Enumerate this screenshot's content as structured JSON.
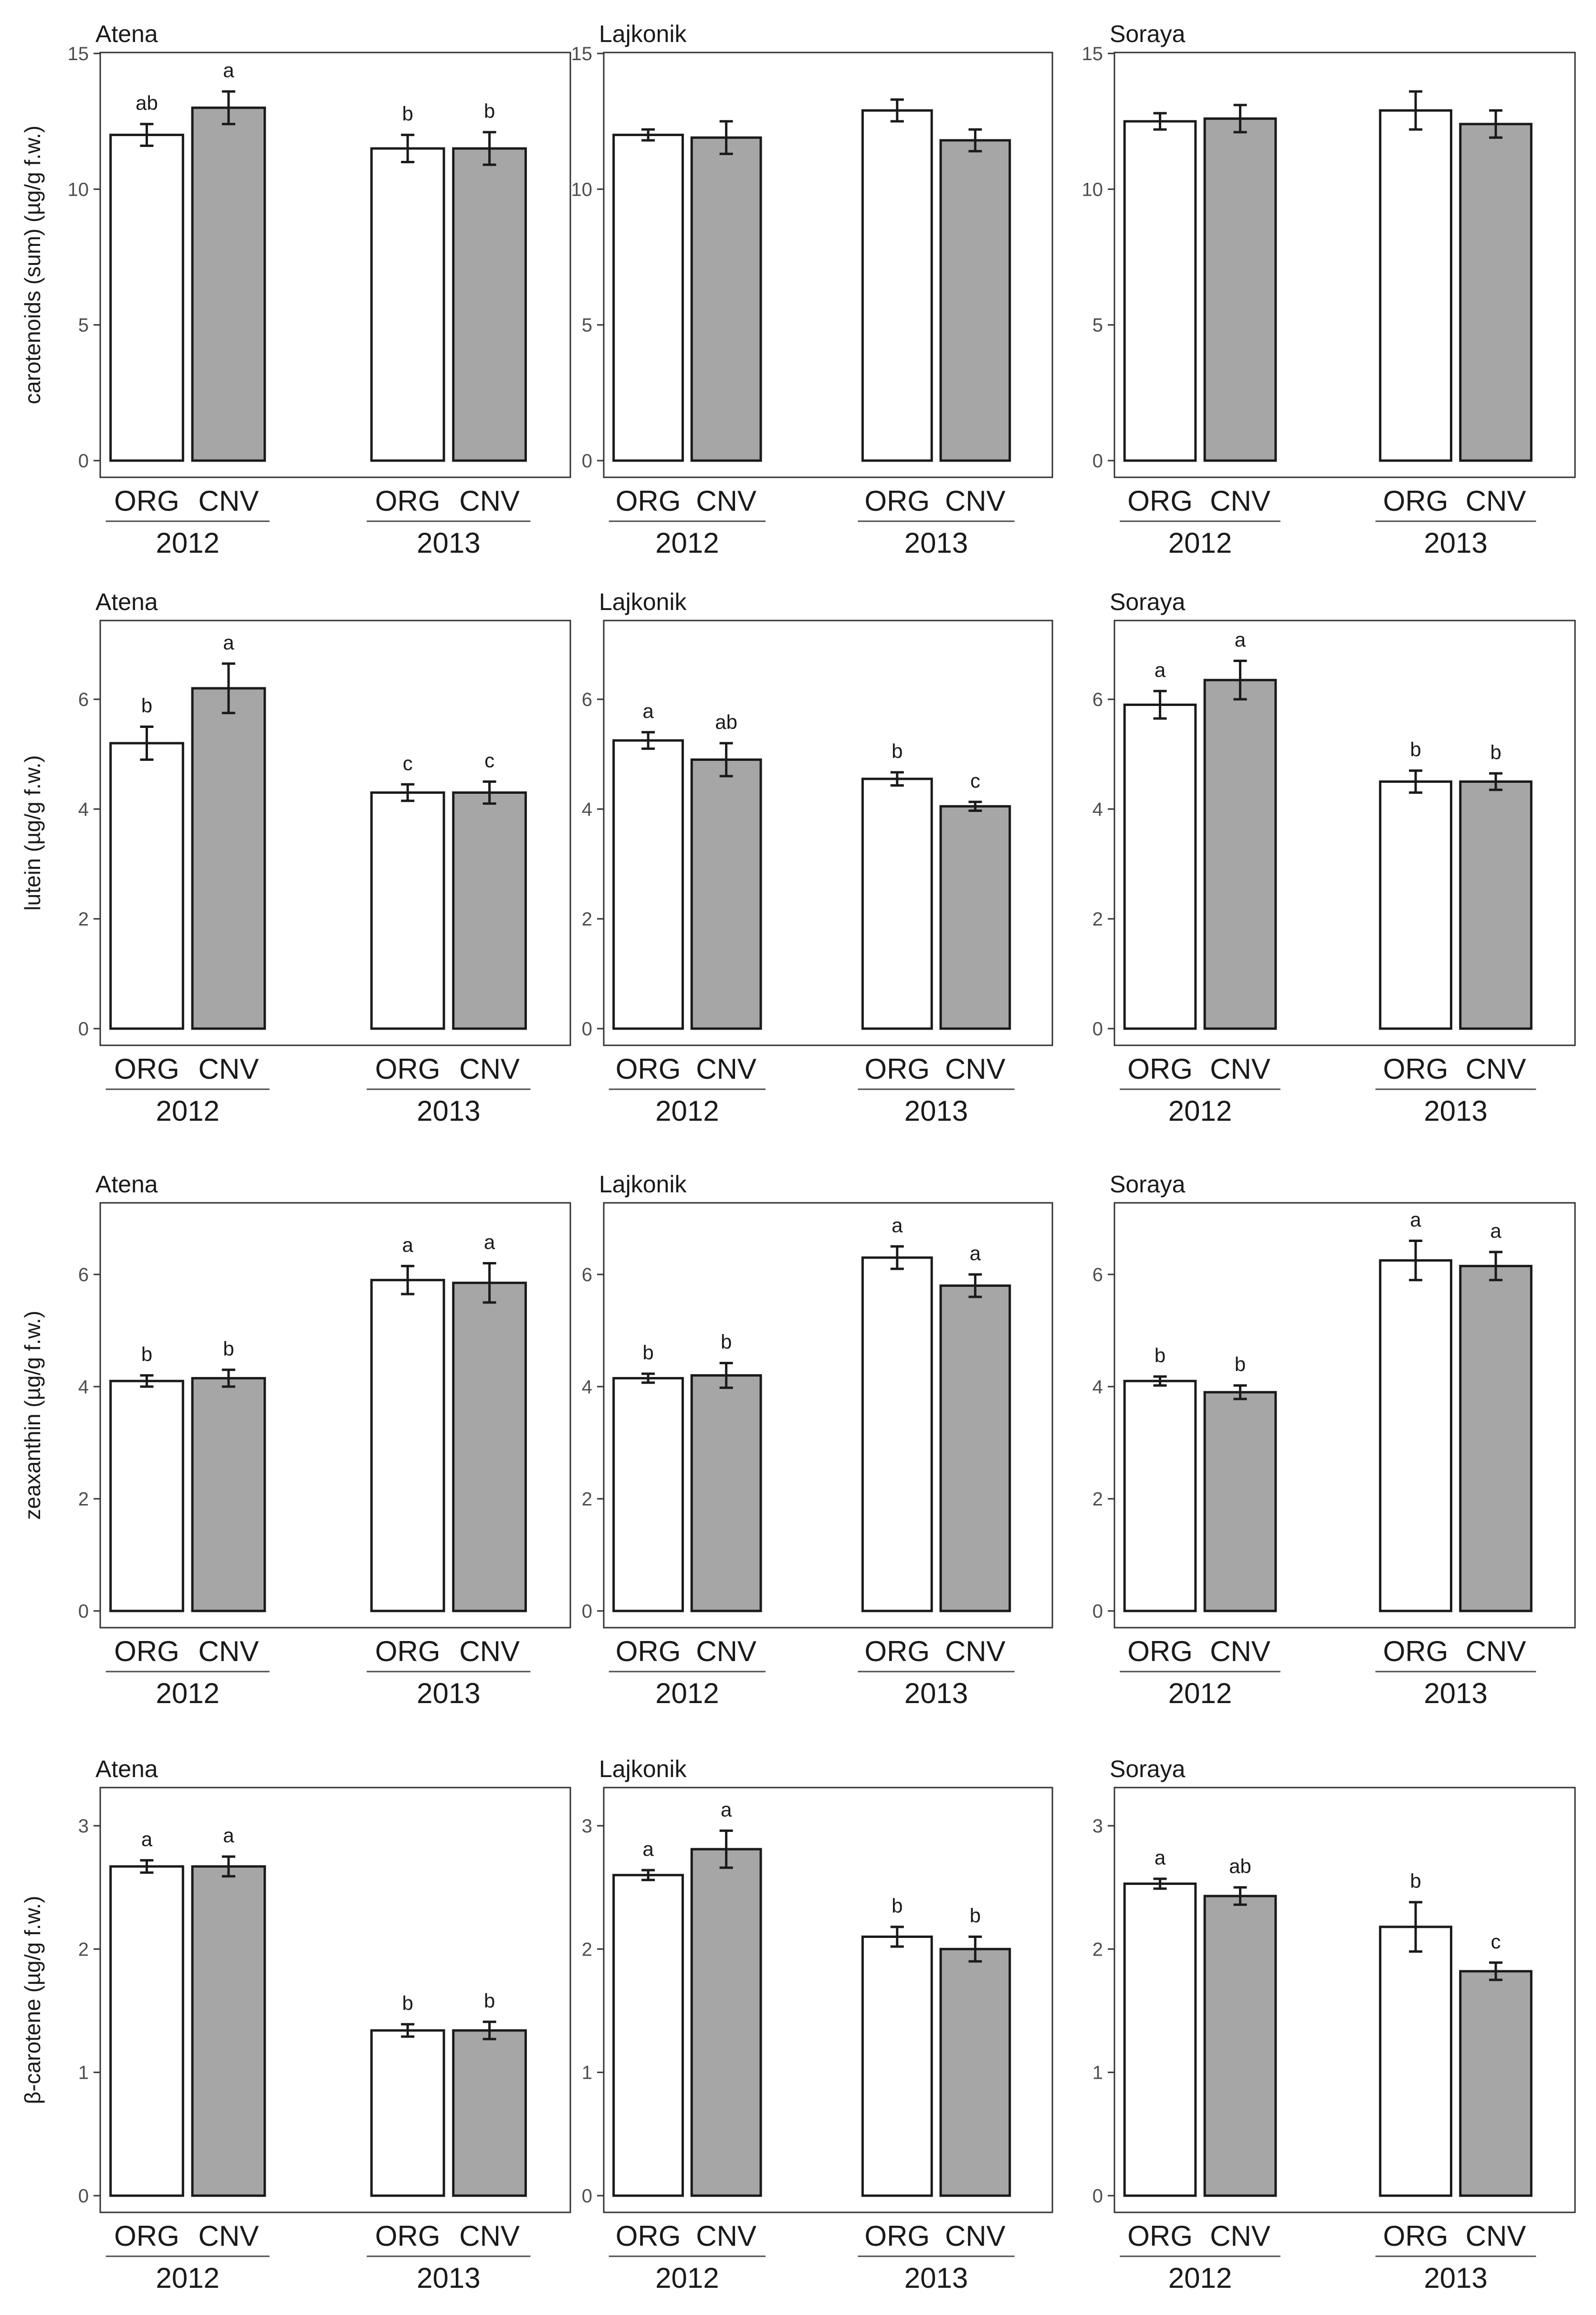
{
  "colors": {
    "ORG": "#ffffff",
    "CNV": "#a6a6a6",
    "border": "#333333",
    "axis": "#333333"
  },
  "chart_data": [
    {
      "type": "bar",
      "row": 0,
      "ylabel": "carotenoids (sum) (µg/g f.w.)",
      "ylim": [
        0,
        15
      ],
      "yticks": [
        0,
        5,
        10,
        15
      ],
      "categories": [
        "ORG",
        "CNV",
        "ORG",
        "CNV"
      ],
      "years": [
        "2012",
        "2013"
      ],
      "panels": [
        {
          "title": "Atena",
          "values": [
            12.0,
            13.0,
            11.5,
            11.5
          ],
          "errors": [
            0.4,
            0.6,
            0.5,
            0.6
          ],
          "labels": [
            "ab",
            "a",
            "b",
            "b"
          ]
        },
        {
          "title": "Lajkonik",
          "values": [
            12.0,
            11.9,
            12.9,
            11.8
          ],
          "errors": [
            0.2,
            0.6,
            0.4,
            0.4
          ],
          "labels": [
            "",
            "",
            "",
            ""
          ]
        },
        {
          "title": "Soraya",
          "values": [
            12.5,
            12.6,
            12.9,
            12.4
          ],
          "errors": [
            0.3,
            0.5,
            0.7,
            0.5
          ],
          "labels": [
            "",
            "",
            "",
            ""
          ]
        }
      ]
    },
    {
      "type": "bar",
      "row": 1,
      "ylabel": "lutein (µg/g f.w.)",
      "ylim": [
        0,
        7.5
      ],
      "yticks": [
        0,
        2,
        4,
        6
      ],
      "categories": [
        "ORG",
        "CNV",
        "ORG",
        "CNV"
      ],
      "years": [
        "2012",
        "2013"
      ],
      "panels": [
        {
          "title": "Atena",
          "values": [
            5.2,
            6.2,
            4.3,
            4.3
          ],
          "errors": [
            0.3,
            0.45,
            0.15,
            0.2
          ],
          "labels": [
            "b",
            "a",
            "c",
            "c"
          ]
        },
        {
          "title": "Lajkonik",
          "values": [
            5.25,
            4.9,
            4.55,
            4.05
          ],
          "errors": [
            0.15,
            0.3,
            0.12,
            0.08
          ],
          "labels": [
            "a",
            "ab",
            "b",
            "c"
          ]
        },
        {
          "title": "Soraya",
          "values": [
            5.9,
            6.35,
            4.5,
            4.5
          ],
          "errors": [
            0.25,
            0.35,
            0.2,
            0.15
          ],
          "labels": [
            "a",
            "a",
            "b",
            "b"
          ]
        }
      ]
    },
    {
      "type": "bar",
      "row": 2,
      "ylabel": "zeaxanthin (µg/g f.w.)",
      "ylim": [
        0,
        7.3
      ],
      "yticks": [
        0,
        2,
        4,
        6
      ],
      "categories": [
        "ORG",
        "CNV",
        "ORG",
        "CNV"
      ],
      "years": [
        "2012",
        "2013"
      ],
      "panels": [
        {
          "title": "Atena",
          "values": [
            4.1,
            4.15,
            5.9,
            5.85
          ],
          "errors": [
            0.1,
            0.15,
            0.25,
            0.35
          ],
          "labels": [
            "b",
            "b",
            "a",
            "a"
          ]
        },
        {
          "title": "Lajkonik",
          "values": [
            4.15,
            4.2,
            6.3,
            5.8
          ],
          "errors": [
            0.08,
            0.22,
            0.2,
            0.2
          ],
          "labels": [
            "b",
            "b",
            "a",
            "a"
          ]
        },
        {
          "title": "Soraya",
          "values": [
            4.1,
            3.9,
            6.25,
            6.15
          ],
          "errors": [
            0.08,
            0.12,
            0.35,
            0.25
          ],
          "labels": [
            "b",
            "b",
            "a",
            "a"
          ]
        }
      ]
    },
    {
      "type": "bar",
      "row": 3,
      "ylabel": "β-carotene (µg/g f.w.)",
      "ylim": [
        0,
        3.3
      ],
      "yticks": [
        0,
        1,
        2,
        3
      ],
      "categories": [
        "ORG",
        "CNV",
        "ORG",
        "CNV"
      ],
      "years": [
        "2012",
        "2013"
      ],
      "panels": [
        {
          "title": "Atena",
          "values": [
            2.67,
            2.67,
            1.34,
            1.34
          ],
          "errors": [
            0.05,
            0.08,
            0.05,
            0.07
          ],
          "labels": [
            "a",
            "a",
            "b",
            "b"
          ]
        },
        {
          "title": "Lajkonik",
          "values": [
            2.6,
            2.81,
            2.1,
            2.0
          ],
          "errors": [
            0.04,
            0.15,
            0.08,
            0.1
          ],
          "labels": [
            "a",
            "a",
            "b",
            "b"
          ]
        },
        {
          "title": "Soraya",
          "values": [
            2.53,
            2.43,
            2.18,
            1.82
          ],
          "errors": [
            0.04,
            0.07,
            0.2,
            0.07
          ],
          "labels": [
            "a",
            "ab",
            "b",
            "c"
          ]
        }
      ]
    }
  ]
}
